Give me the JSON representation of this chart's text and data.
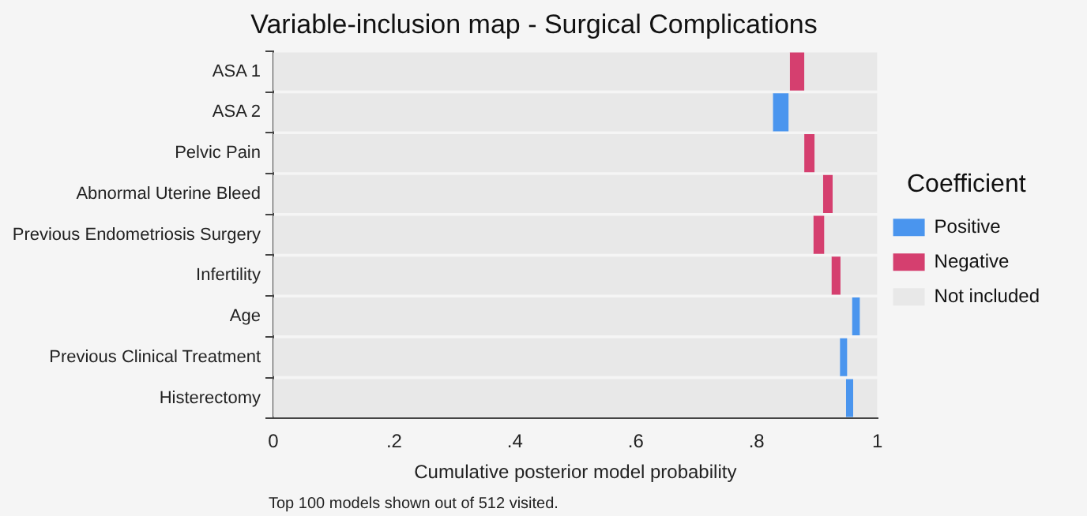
{
  "chart_data": {
    "type": "bar",
    "orientation": "horizontal",
    "stacked": true,
    "title": "Variable-inclusion map - Surgical Complications",
    "xlabel": "Cumulative posterior model probability",
    "legend_title": "Coefficient",
    "legend": "right",
    "grid": false,
    "categories": [
      "ASA 1",
      "ASA 2",
      "Pelvic Pain",
      "Abnormal Uterine Bleed",
      "Previous Endometriosis Surgery",
      "Infertility",
      "Age",
      "Previous Clinical Treatment",
      "Histerectomy"
    ],
    "series": [
      {
        "name": "Not included",
        "color": "#e8e8e8",
        "values": [
          0.855,
          0.827,
          0.879,
          0.91,
          0.894,
          0.924,
          0.958,
          0.938,
          0.948
        ]
      },
      {
        "name": "Positive",
        "color": "#4a95ee",
        "values": [
          null,
          0.026,
          null,
          null,
          null,
          null,
          0.013,
          0.012,
          0.012
        ]
      },
      {
        "name": "Negative",
        "color": "#d53f6f",
        "values": [
          0.024,
          null,
          0.017,
          0.016,
          0.018,
          0.015,
          null,
          null,
          null
        ]
      },
      {
        "color": "#e8e8e8",
        "values": [
          0.121,
          0.147,
          0.104,
          0.074,
          0.088,
          0.061,
          0.029,
          0.05,
          0.04
        ]
      }
    ],
    "xlim": [
      0,
      1
    ],
    "xticks": [
      0,
      {
        "value": 0.2,
        "label": ".2"
      },
      {
        "value": 0.4,
        "label": ".4"
      },
      {
        "value": 0.6,
        "label": ".6"
      },
      {
        "value": 0.8,
        "label": ".8"
      },
      1
    ],
    "annotations": [
      "Top 100 models shown out of 512 visited."
    ]
  }
}
